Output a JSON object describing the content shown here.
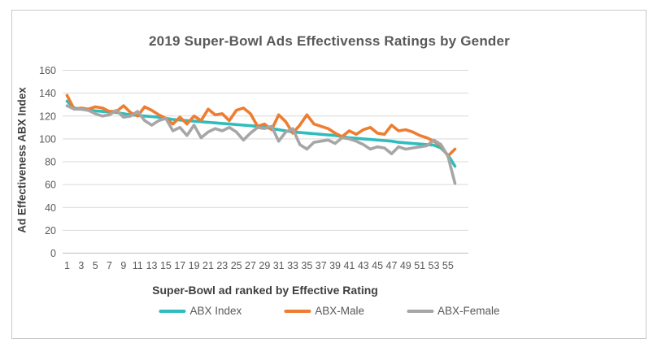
{
  "colors": {
    "abx_index": "#2fbcbc",
    "abx_male": "#ed7d31",
    "abx_female": "#a6a6a6",
    "title_text": "#595959",
    "axis_title_text": "#3f3f3f",
    "tick_text": "#595959",
    "gridline": "#d9d9d9",
    "axis_line": "#bfbfbf",
    "frame_border": "#c8c8c8"
  },
  "chart_data": {
    "type": "line",
    "title": "2019 Super-Bowl Ads Effectivenss Ratings by Gender",
    "xlabel": "Super-Bowl ad ranked by Effective Rating",
    "ylabel": "Ad Effectiveness ABX Index",
    "ylim": [
      0,
      160
    ],
    "yticks": [
      0,
      20,
      40,
      60,
      80,
      100,
      120,
      140,
      160
    ],
    "xtick_labels": [
      "1",
      "3",
      "5",
      "7",
      "9",
      "11",
      "13",
      "15",
      "17",
      "19",
      "21",
      "23",
      "25",
      "27",
      "29",
      "31",
      "33",
      "35",
      "37",
      "39",
      "41",
      "43",
      "45",
      "47",
      "49",
      "51",
      "53",
      "55"
    ],
    "grid": true,
    "legend_position": "bottom",
    "series": [
      {
        "name": "ABX Index",
        "color": "#2fbcbc",
        "values": [
          133,
          127,
          126,
          125,
          124.5,
          124,
          123.5,
          123,
          122,
          121,
          120.5,
          120,
          119.5,
          119,
          118,
          117,
          116.5,
          116,
          115.5,
          115,
          114.5,
          114,
          113.5,
          113,
          112.5,
          112,
          111.5,
          111,
          110,
          109,
          108,
          107,
          106,
          105.5,
          105,
          104.5,
          104,
          103.5,
          103,
          102,
          101,
          100.5,
          100,
          99.5,
          99,
          98.5,
          98,
          97,
          96.5,
          96,
          95.5,
          95,
          94.5,
          92,
          86,
          76
        ]
      },
      {
        "name": "ABX-Male",
        "color": "#ed7d31",
        "values": [
          138,
          126,
          127,
          126,
          128,
          127,
          124,
          124,
          129,
          123,
          120,
          128,
          125,
          121,
          118,
          113,
          119,
          113,
          120,
          116,
          126,
          121,
          122,
          116,
          125,
          127,
          122,
          111,
          113,
          108,
          121,
          115,
          105,
          112,
          121,
          113,
          111,
          109,
          105,
          102,
          107,
          104,
          108,
          110,
          105,
          104,
          112,
          107,
          108,
          106,
          103,
          101,
          98,
          94,
          85,
          91
        ]
      },
      {
        "name": "ABX-Female",
        "color": "#a6a6a6",
        "values": [
          129,
          126,
          126,
          125,
          122,
          120,
          121,
          125,
          119,
          120,
          124,
          116,
          112,
          116,
          118,
          107,
          110,
          103,
          112,
          101,
          106,
          109,
          107,
          110,
          106,
          99,
          105,
          110,
          109,
          111,
          98,
          106,
          109,
          95,
          91,
          97,
          98,
          99,
          96,
          101,
          100,
          98,
          95,
          91,
          93,
          92,
          87,
          93,
          91,
          92,
          93,
          94,
          99,
          95,
          85,
          61
        ]
      }
    ]
  }
}
